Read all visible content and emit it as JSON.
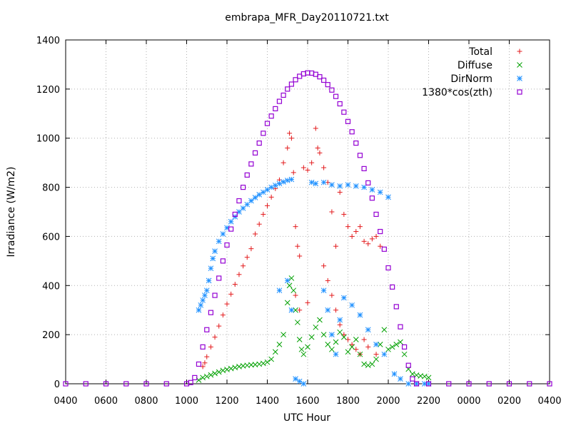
{
  "chart_data": {
    "type": "scatter",
    "title": "embrapa_MFR_Day20110721.txt",
    "xlabel": "UTC Hour",
    "ylabel": "Irradiance (W/m2)",
    "xlim": [
      4,
      28
    ],
    "ylim": [
      0,
      1400
    ],
    "grid": true,
    "legend_position": "top-right",
    "x_ticks": [
      {
        "value": 4,
        "label": "0400"
      },
      {
        "value": 6,
        "label": "0600"
      },
      {
        "value": 8,
        "label": "0800"
      },
      {
        "value": 10,
        "label": "1000"
      },
      {
        "value": 12,
        "label": "1200"
      },
      {
        "value": 14,
        "label": "1400"
      },
      {
        "value": 16,
        "label": "1600"
      },
      {
        "value": 18,
        "label": "1800"
      },
      {
        "value": 20,
        "label": "2000"
      },
      {
        "value": 22,
        "label": "2200"
      },
      {
        "value": 24,
        "label": "0000"
      },
      {
        "value": 26,
        "label": "0200"
      },
      {
        "value": 28,
        "label": "0400"
      }
    ],
    "y_ticks": [
      0,
      200,
      400,
      600,
      800,
      1000,
      1200,
      1400
    ],
    "series": [
      {
        "name": "Total",
        "marker": "plus",
        "color": "#e31a1c",
        "points": [
          [
            10.8,
            70
          ],
          [
            10.9,
            85
          ],
          [
            11.0,
            110
          ],
          [
            11.2,
            150
          ],
          [
            11.4,
            190
          ],
          [
            11.6,
            235
          ],
          [
            11.8,
            280
          ],
          [
            12.0,
            325
          ],
          [
            12.2,
            365
          ],
          [
            12.4,
            405
          ],
          [
            12.6,
            445
          ],
          [
            12.8,
            480
          ],
          [
            13.0,
            515
          ],
          [
            13.2,
            550
          ],
          [
            13.4,
            610
          ],
          [
            13.6,
            650
          ],
          [
            13.8,
            690
          ],
          [
            14.0,
            725
          ],
          [
            14.2,
            760
          ],
          [
            14.4,
            795
          ],
          [
            14.6,
            830
          ],
          [
            14.8,
            900
          ],
          [
            15.0,
            960
          ],
          [
            15.1,
            1020
          ],
          [
            15.2,
            1000
          ],
          [
            15.3,
            860
          ],
          [
            15.4,
            640
          ],
          [
            15.5,
            560
          ],
          [
            15.6,
            520
          ],
          [
            15.8,
            880
          ],
          [
            16.0,
            870
          ],
          [
            16.2,
            900
          ],
          [
            16.4,
            1040
          ],
          [
            16.5,
            960
          ],
          [
            16.6,
            940
          ],
          [
            16.8,
            880
          ],
          [
            17.0,
            820
          ],
          [
            17.2,
            700
          ],
          [
            17.4,
            560
          ],
          [
            17.6,
            780
          ],
          [
            17.8,
            690
          ],
          [
            18.0,
            640
          ],
          [
            18.2,
            600
          ],
          [
            18.4,
            620
          ],
          [
            18.6,
            640
          ],
          [
            18.8,
            580
          ],
          [
            19.0,
            570
          ],
          [
            19.2,
            590
          ],
          [
            19.4,
            600
          ],
          [
            19.6,
            560
          ],
          [
            15.4,
            360
          ],
          [
            15.6,
            300
          ],
          [
            16.0,
            330
          ],
          [
            16.8,
            480
          ],
          [
            17.0,
            420
          ],
          [
            17.2,
            360
          ],
          [
            17.4,
            300
          ],
          [
            17.6,
            240
          ],
          [
            17.8,
            200
          ],
          [
            18.0,
            180
          ],
          [
            18.2,
            160
          ],
          [
            18.4,
            140
          ],
          [
            18.6,
            120
          ],
          [
            18.8,
            180
          ],
          [
            19.0,
            150
          ],
          [
            19.4,
            120
          ]
        ]
      },
      {
        "name": "Diffuse",
        "marker": "cross",
        "color": "#00a000",
        "points": [
          [
            10.6,
            15
          ],
          [
            10.8,
            25
          ],
          [
            11.0,
            30
          ],
          [
            11.2,
            36
          ],
          [
            11.4,
            42
          ],
          [
            11.6,
            48
          ],
          [
            11.8,
            54
          ],
          [
            12.0,
            58
          ],
          [
            12.2,
            62
          ],
          [
            12.4,
            66
          ],
          [
            12.6,
            70
          ],
          [
            12.8,
            73
          ],
          [
            13.0,
            75
          ],
          [
            13.2,
            77
          ],
          [
            13.4,
            78
          ],
          [
            13.6,
            80
          ],
          [
            13.8,
            83
          ],
          [
            14.0,
            88
          ],
          [
            14.2,
            100
          ],
          [
            14.4,
            130
          ],
          [
            14.6,
            160
          ],
          [
            14.8,
            200
          ],
          [
            15.0,
            330
          ],
          [
            15.1,
            400
          ],
          [
            15.2,
            430
          ],
          [
            15.3,
            380
          ],
          [
            15.4,
            300
          ],
          [
            15.5,
            250
          ],
          [
            15.6,
            180
          ],
          [
            15.7,
            140
          ],
          [
            15.8,
            120
          ],
          [
            16.0,
            150
          ],
          [
            16.2,
            190
          ],
          [
            16.4,
            230
          ],
          [
            16.6,
            260
          ],
          [
            16.8,
            200
          ],
          [
            17.0,
            160
          ],
          [
            17.2,
            140
          ],
          [
            17.4,
            170
          ],
          [
            17.6,
            210
          ],
          [
            17.8,
            190
          ],
          [
            18.0,
            130
          ],
          [
            18.2,
            150
          ],
          [
            18.4,
            180
          ],
          [
            18.6,
            120
          ],
          [
            18.8,
            80
          ],
          [
            19.0,
            75
          ],
          [
            19.2,
            80
          ],
          [
            19.4,
            100
          ],
          [
            19.6,
            160
          ],
          [
            19.8,
            220
          ],
          [
            20.0,
            140
          ],
          [
            20.2,
            150
          ],
          [
            20.4,
            160
          ],
          [
            20.6,
            170
          ],
          [
            20.8,
            120
          ],
          [
            21.0,
            60
          ],
          [
            21.2,
            40
          ],
          [
            21.4,
            35
          ],
          [
            21.6,
            32
          ],
          [
            21.8,
            30
          ],
          [
            22.0,
            25
          ]
        ]
      },
      {
        "name": "DirNorm",
        "marker": "star",
        "color": "#1e90ff",
        "points": [
          [
            10.6,
            300
          ],
          [
            10.7,
            320
          ],
          [
            10.8,
            340
          ],
          [
            10.9,
            360
          ],
          [
            11.0,
            380
          ],
          [
            11.1,
            420
          ],
          [
            11.2,
            470
          ],
          [
            11.3,
            510
          ],
          [
            11.4,
            540
          ],
          [
            11.6,
            580
          ],
          [
            11.8,
            610
          ],
          [
            12.0,
            635
          ],
          [
            12.2,
            660
          ],
          [
            12.4,
            680
          ],
          [
            12.6,
            700
          ],
          [
            12.8,
            715
          ],
          [
            13.0,
            730
          ],
          [
            13.2,
            745
          ],
          [
            13.4,
            758
          ],
          [
            13.6,
            770
          ],
          [
            13.8,
            780
          ],
          [
            14.0,
            790
          ],
          [
            14.2,
            800
          ],
          [
            14.4,
            808
          ],
          [
            14.6,
            815
          ],
          [
            14.8,
            822
          ],
          [
            15.0,
            828
          ],
          [
            15.2,
            832
          ],
          [
            15.4,
            20
          ],
          [
            15.6,
            10
          ],
          [
            15.8,
            0
          ],
          [
            16.2,
            820
          ],
          [
            16.4,
            815
          ],
          [
            16.8,
            820
          ],
          [
            17.2,
            810
          ],
          [
            17.6,
            805
          ],
          [
            18.0,
            810
          ],
          [
            18.4,
            805
          ],
          [
            18.8,
            800
          ],
          [
            19.2,
            790
          ],
          [
            19.6,
            780
          ],
          [
            20.0,
            760
          ],
          [
            20.3,
            40
          ],
          [
            20.6,
            20
          ],
          [
            21.0,
            0
          ],
          [
            21.4,
            0
          ],
          [
            21.8,
            0
          ],
          [
            22.0,
            0
          ],
          [
            14.6,
            380
          ],
          [
            15.0,
            420
          ],
          [
            15.2,
            300
          ],
          [
            16.8,
            380
          ],
          [
            17.0,
            300
          ],
          [
            17.2,
            200
          ],
          [
            17.4,
            120
          ],
          [
            17.6,
            260
          ],
          [
            17.8,
            350
          ],
          [
            18.2,
            320
          ],
          [
            18.6,
            280
          ],
          [
            19.0,
            220
          ],
          [
            19.4,
            160
          ],
          [
            19.8,
            120
          ]
        ]
      },
      {
        "name": "1380*cos(zth)",
        "marker": "square",
        "color": "#9400d3",
        "points": [
          [
            4,
            0
          ],
          [
            5,
            0
          ],
          [
            6,
            0
          ],
          [
            7,
            0
          ],
          [
            8,
            0
          ],
          [
            9,
            0
          ],
          [
            10,
            0
          ],
          [
            10.2,
            5
          ],
          [
            10.4,
            25
          ],
          [
            10.6,
            80
          ],
          [
            10.8,
            150
          ],
          [
            11.0,
            220
          ],
          [
            11.2,
            290
          ],
          [
            11.4,
            360
          ],
          [
            11.6,
            430
          ],
          [
            11.8,
            500
          ],
          [
            12.0,
            565
          ],
          [
            12.2,
            630
          ],
          [
            12.4,
            690
          ],
          [
            12.6,
            745
          ],
          [
            12.8,
            800
          ],
          [
            13.0,
            850
          ],
          [
            13.2,
            895
          ],
          [
            13.4,
            940
          ],
          [
            13.6,
            980
          ],
          [
            13.8,
            1020
          ],
          [
            14.0,
            1060
          ],
          [
            14.2,
            1090
          ],
          [
            14.4,
            1120
          ],
          [
            14.6,
            1150
          ],
          [
            14.8,
            1175
          ],
          [
            15.0,
            1200
          ],
          [
            15.2,
            1220
          ],
          [
            15.4,
            1238
          ],
          [
            15.6,
            1252
          ],
          [
            15.8,
            1262
          ],
          [
            16.0,
            1266
          ],
          [
            16.2,
            1265
          ],
          [
            16.4,
            1260
          ],
          [
            16.6,
            1250
          ],
          [
            16.8,
            1236
          ],
          [
            17.0,
            1218
          ],
          [
            17.2,
            1196
          ],
          [
            17.4,
            1170
          ],
          [
            17.6,
            1140
          ],
          [
            17.8,
            1106
          ],
          [
            18.0,
            1068
          ],
          [
            18.2,
            1026
          ],
          [
            18.4,
            980
          ],
          [
            18.6,
            930
          ],
          [
            18.8,
            876
          ],
          [
            19.0,
            818
          ],
          [
            19.2,
            756
          ],
          [
            19.4,
            690
          ],
          [
            19.6,
            620
          ],
          [
            19.8,
            548
          ],
          [
            20.0,
            472
          ],
          [
            20.2,
            394
          ],
          [
            20.4,
            314
          ],
          [
            20.6,
            232
          ],
          [
            20.8,
            150
          ],
          [
            21.0,
            75
          ],
          [
            21.2,
            20
          ],
          [
            21.4,
            0
          ],
          [
            22,
            0
          ],
          [
            23,
            0
          ],
          [
            24,
            0
          ],
          [
            25,
            0
          ],
          [
            26,
            0
          ],
          [
            27,
            0
          ],
          [
            28,
            0
          ]
        ]
      }
    ]
  }
}
